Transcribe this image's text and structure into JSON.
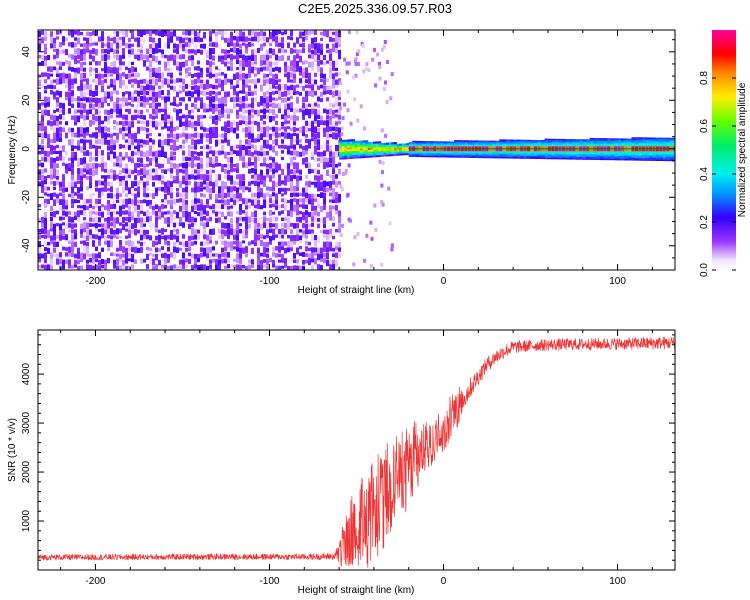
{
  "figure": {
    "title": "C2E5.2025.336.09.57.R03"
  },
  "chart_data": [
    {
      "type": "heatmap",
      "xlabel": "Height of straight line (km)",
      "ylabel": "Frequency (Hz)",
      "xlim": [
        -233,
        133
      ],
      "ylim": [
        -50,
        49
      ],
      "xticks": [
        -200,
        -100,
        0,
        100
      ],
      "yticks": [
        -40,
        -20,
        0,
        20,
        40
      ],
      "colorbar": {
        "label": "Normalized spectral amplitude",
        "range": [
          0,
          1
        ],
        "ticks": [
          0,
          0.2,
          0.4,
          0.6,
          0.8
        ],
        "tick_labels": [
          "0.0",
          "0.2",
          "0.4",
          "0.6",
          "0.8"
        ]
      },
      "regions": [
        {
          "name": "noise",
          "x": [
            -233,
            -60
          ],
          "freq": [
            -50,
            49
          ],
          "amplitude": [
            0.0,
            0.3
          ]
        },
        {
          "name": "transition",
          "x": [
            -60,
            -20
          ],
          "freq": [
            -4,
            4
          ],
          "amplitude": [
            0.3,
            0.6
          ]
        },
        {
          "name": "carrier",
          "x": [
            -20,
            133
          ],
          "freq": [
            -1,
            1
          ],
          "amplitude": [
            0.8,
            1.0
          ]
        },
        {
          "name": "carrier-halo",
          "x": [
            -20,
            133
          ],
          "freq": [
            -3,
            3
          ],
          "amplitude": [
            0.2,
            0.5
          ]
        }
      ],
      "grid": false
    },
    {
      "type": "line",
      "xlabel": "Height of straight line (km)",
      "ylabel": "SNR (10 * v/v)",
      "xlim": [
        -233,
        133
      ],
      "ylim": [
        0,
        4900
      ],
      "xticks": [
        -200,
        -100,
        0,
        100
      ],
      "yticks": [
        1000,
        2000,
        3000,
        4000
      ],
      "series": [
        {
          "color": "#ee3333",
          "x": [
            -233,
            -200,
            -150,
            -100,
            -75,
            -62,
            -55,
            -50,
            -45,
            -40,
            -35,
            -30,
            -25,
            -20,
            -15,
            -10,
            -5,
            0,
            5,
            10,
            15,
            20,
            25,
            30,
            35,
            40,
            50,
            60,
            80,
            100,
            120,
            133
          ],
          "y": [
            260,
            260,
            270,
            270,
            270,
            280,
            560,
            850,
            1000,
            1150,
            1400,
            1650,
            1900,
            2050,
            2300,
            2500,
            2700,
            2900,
            3150,
            3400,
            3700,
            3950,
            4200,
            4350,
            4470,
            4550,
            4580,
            4600,
            4610,
            4620,
            4630,
            4640
          ],
          "noise": [
            60,
            60,
            60,
            60,
            60,
            70,
            480,
            650,
            700,
            750,
            800,
            800,
            750,
            650,
            500,
            400,
            350,
            320,
            300,
            250,
            220,
            180,
            150,
            150,
            140,
            130,
            120,
            120,
            120,
            120,
            130,
            130
          ]
        }
      ],
      "grid": false
    }
  ]
}
